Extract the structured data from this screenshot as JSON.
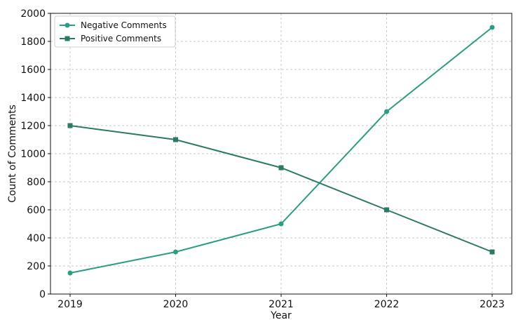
{
  "chart_data": {
    "type": "line",
    "x": [
      "2019",
      "2020",
      "2021",
      "2022",
      "2023"
    ],
    "xlabel": "Year",
    "ylabel": "Count of Comments",
    "ylim": [
      0,
      2000
    ],
    "yticks": [
      0,
      200,
      400,
      600,
      800,
      1000,
      1200,
      1400,
      1600,
      1800,
      2000
    ],
    "grid": true,
    "legend_position": "top-left",
    "series": [
      {
        "name": "Negative Comments",
        "values": [
          150,
          300,
          500,
          1300,
          1900
        ],
        "marker": "circle",
        "color": "#2a9d84"
      },
      {
        "name": "Positive Comments",
        "values": [
          1200,
          1100,
          900,
          600,
          300
        ],
        "marker": "square",
        "color": "#2a7a66"
      }
    ]
  }
}
